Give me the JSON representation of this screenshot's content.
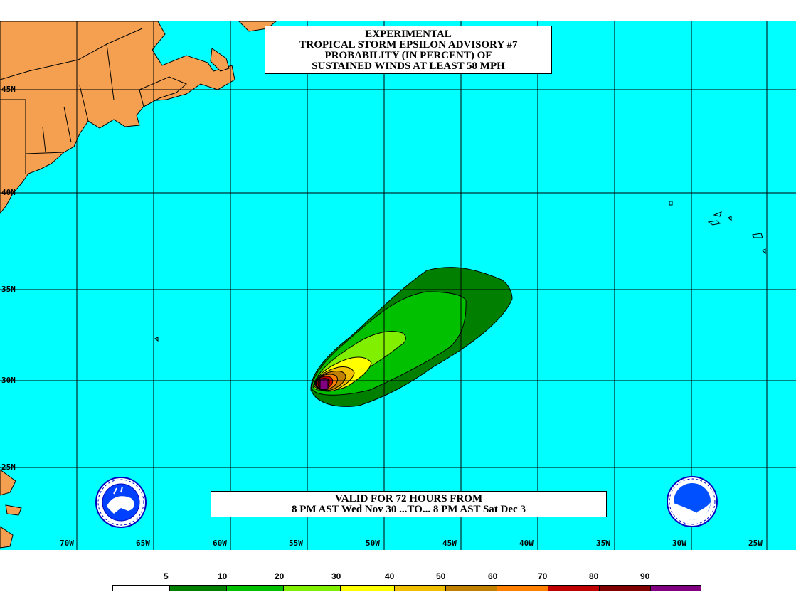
{
  "title": {
    "line1": "EXPERIMENTAL",
    "line2": "TROPICAL STORM EPSILON ADVISORY #7",
    "line3": "PROBABILITY (IN PERCENT) OF",
    "line4": "SUSTAINED WINDS AT LEAST 58 MPH"
  },
  "valid": {
    "line1": "VALID FOR 72 HOURS FROM",
    "line2": "8 PM AST Wed Nov 30 ...TO... 8 PM AST Sat Dec 3"
  },
  "longitude_labels": [
    "70W",
    "65W",
    "60W",
    "55W",
    "50W",
    "45W",
    "40W",
    "35W",
    "30W",
    "25W"
  ],
  "latitude_labels": [
    "45N",
    "40N",
    "35N",
    "30N",
    "25N"
  ],
  "legend": {
    "thresholds": [
      "5",
      "10",
      "20",
      "30",
      "40",
      "50",
      "60",
      "70",
      "80",
      "90"
    ],
    "colors": [
      "#ffffff",
      "#007f00",
      "#00c000",
      "#80f000",
      "#ffff00",
      "#f0c000",
      "#c08000",
      "#ff8000",
      "#c00000",
      "#800000",
      "#800080"
    ]
  },
  "colors": {
    "ocean": "#00ffff",
    "land": "#f5a050",
    "grid": "#000000"
  },
  "logos": {
    "left": "nws-seal-icon",
    "right": "noaa-seal-icon"
  }
}
